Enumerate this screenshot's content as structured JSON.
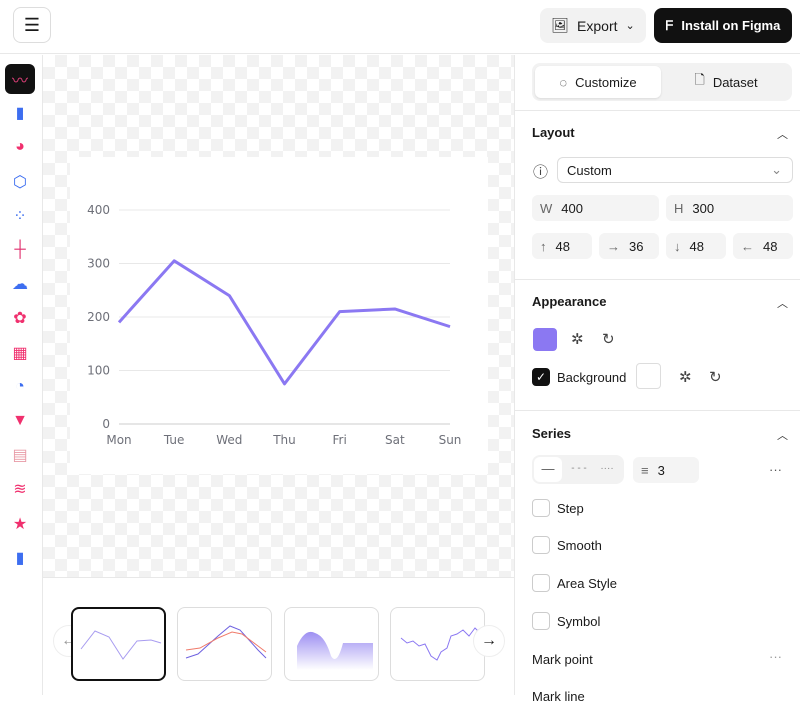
{
  "topbar": {
    "export_label": "Export",
    "install_label": "Install on Figma"
  },
  "sidebar": {
    "items": [
      "line-chart",
      "bar-chart",
      "pie-chart",
      "radar-chart",
      "scatter-chart",
      "candlestick-chart",
      "map-chart",
      "sunburst-chart",
      "treemap-chart",
      "gauge-chart",
      "funnel-chart",
      "table-chart",
      "theme-river-chart",
      "pictorial-chart",
      "custom-bar-chart"
    ],
    "active": 0
  },
  "panel": {
    "tabs": [
      {
        "label": "Customize",
        "active": true
      },
      {
        "label": "Dataset",
        "active": false
      }
    ],
    "layout": {
      "title": "Layout",
      "preset": "Custom",
      "width_label": "W",
      "width": "400",
      "height_label": "H",
      "height": "300",
      "padding": {
        "top": "48",
        "right": "36",
        "bottom": "48",
        "left": "48"
      }
    },
    "appearance": {
      "title": "Appearance",
      "color": "#8b78f2",
      "background_label": "Background",
      "background_checked": true
    },
    "series": {
      "title": "Series",
      "line_width": "3",
      "options": [
        {
          "label": "Step",
          "checked": false
        },
        {
          "label": "Smooth",
          "checked": false
        },
        {
          "label": "Area Style",
          "checked": false
        },
        {
          "label": "Symbol",
          "checked": false
        }
      ],
      "mark_point_label": "Mark point",
      "mark_line_label": "Mark line"
    }
  },
  "chart_data": {
    "type": "line",
    "categories": [
      "Mon",
      "Tue",
      "Wed",
      "Thu",
      "Fri",
      "Sat",
      "Sun"
    ],
    "values": [
      190,
      305,
      240,
      75,
      210,
      215,
      182
    ],
    "yticks": [
      "0",
      "100",
      "200",
      "300",
      "400"
    ],
    "ylim": [
      0,
      400
    ],
    "grid": true,
    "color": "#8b78f2"
  }
}
